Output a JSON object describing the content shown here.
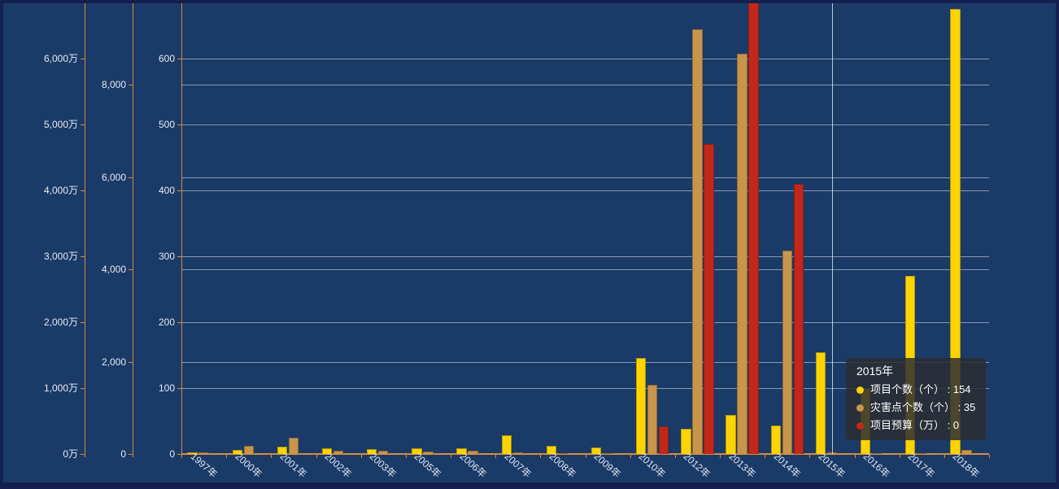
{
  "page": {
    "outer_background": "#131f4e",
    "panel_background": "#1a3a68"
  },
  "colors": {
    "axis_line": "#d68c3c",
    "grid_line": "rgba(228,234,244,0.55)",
    "axis_label": "#e6ebf3",
    "pointer_line": "rgba(255,255,255,0.7)",
    "tooltip_bg": "rgba(44,46,50,0.85)",
    "series_yellow": "#fcd303",
    "series_tan": "#c8954a",
    "series_red": "#c1281b"
  },
  "chart_data": {
    "type": "bar",
    "title": "",
    "categories": [
      "1997年",
      "2000年",
      "2001年",
      "2002年",
      "2003年",
      "2005年",
      "2006年",
      "2007年",
      "2008年",
      "2009年",
      "2010年",
      "2012年",
      "2013年",
      "2014年",
      "2015年",
      "2016年",
      "2017年",
      "2018年"
    ],
    "series": [
      {
        "name": "项目个数（个）",
        "color": "#fcd303",
        "axis": "count",
        "values": [
          2,
          6,
          11,
          9,
          8,
          9,
          9,
          28,
          12,
          10,
          146,
          38,
          59,
          43,
          154,
          100,
          270,
          675
        ]
      },
      {
        "name": "灾害点个数（个）",
        "color": "#c8954a",
        "axis": "points",
        "values": [
          30,
          180,
          350,
          70,
          80,
          60,
          80,
          40,
          15,
          15,
          1500,
          9200,
          8670,
          4400,
          35,
          10,
          10,
          85
        ]
      },
      {
        "name": "项目预算（万）",
        "color": "#c1281b",
        "axis": "budget",
        "values": [
          0,
          0,
          0,
          0,
          0,
          0,
          0,
          0,
          0,
          0,
          420,
          4700,
          6900,
          4100,
          0,
          0,
          0,
          0
        ]
      }
    ],
    "y_axes": [
      {
        "id": "budget",
        "unit": "万",
        "position": "outer-left",
        "tick_values": [
          0,
          1000,
          2000,
          3000,
          4000,
          5000,
          6000
        ],
        "tick_labels": [
          "0万",
          "1,000万",
          "2,000万",
          "3,000万",
          "4,000万",
          "5,000万",
          "6,000万"
        ]
      },
      {
        "id": "points",
        "unit": "",
        "position": "middle-left",
        "tick_values": [
          0,
          2000,
          4000,
          6000,
          8000
        ],
        "tick_labels": [
          "0",
          "2,000",
          "4,000",
          "6,000",
          "8,000"
        ]
      },
      {
        "id": "count",
        "unit": "",
        "position": "inner-left",
        "tick_values": [
          0,
          100,
          200,
          300,
          400,
          500,
          600
        ],
        "tick_labels": [
          "0",
          "100",
          "200",
          "300",
          "400",
          "500",
          "600"
        ]
      }
    ],
    "grid": true,
    "legend_position": "none"
  },
  "tooltip": {
    "title": "2015年",
    "category_index": 14,
    "rows": [
      {
        "marker_color": "#fcd303",
        "label": "项目个数（个）",
        "value": "154"
      },
      {
        "marker_color": "#c8954a",
        "label": "灾害点个数（个）",
        "value": "35"
      },
      {
        "marker_color": "#c1281b",
        "label": "项目预算（万）",
        "value": "0"
      }
    ]
  }
}
